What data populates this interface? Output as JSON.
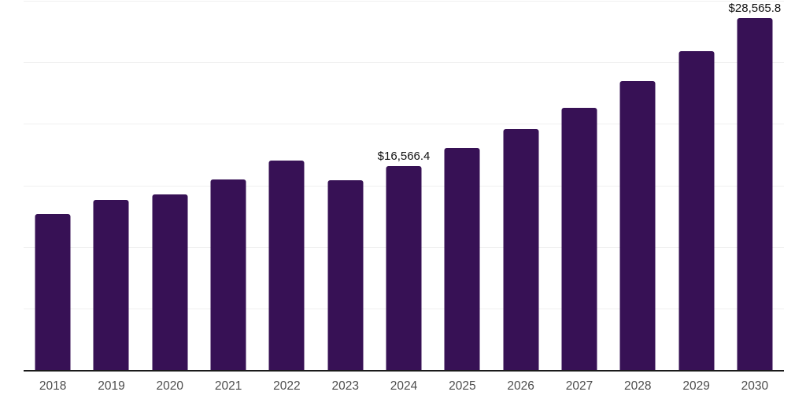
{
  "chart_data": {
    "type": "bar",
    "title": "",
    "categories": [
      "2018",
      "2019",
      "2020",
      "2021",
      "2022",
      "2023",
      "2024",
      "2025",
      "2026",
      "2027",
      "2028",
      "2029",
      "2030"
    ],
    "values": [
      12680,
      13830,
      14270,
      15490,
      17020,
      15390,
      16566.4,
      18020,
      19570,
      21320,
      23490,
      25890,
      28565.8
    ],
    "value_labels": [
      "",
      "",
      "",
      "",
      "",
      "",
      "$16,566.4",
      "",
      "",
      "",
      "",
      "",
      "$28,565.8"
    ],
    "xlabel": "",
    "ylabel": "",
    "ylim": [
      0,
      30000
    ],
    "gridline_interval": 5000,
    "grid": true,
    "legend": false,
    "colors": {
      "bar": "#371155",
      "gridline": "#f0f0f0",
      "axis": "#1a1a1a",
      "tick_label": "#4d4d4d",
      "value_label": "#111111",
      "background": "#ffffff"
    }
  }
}
